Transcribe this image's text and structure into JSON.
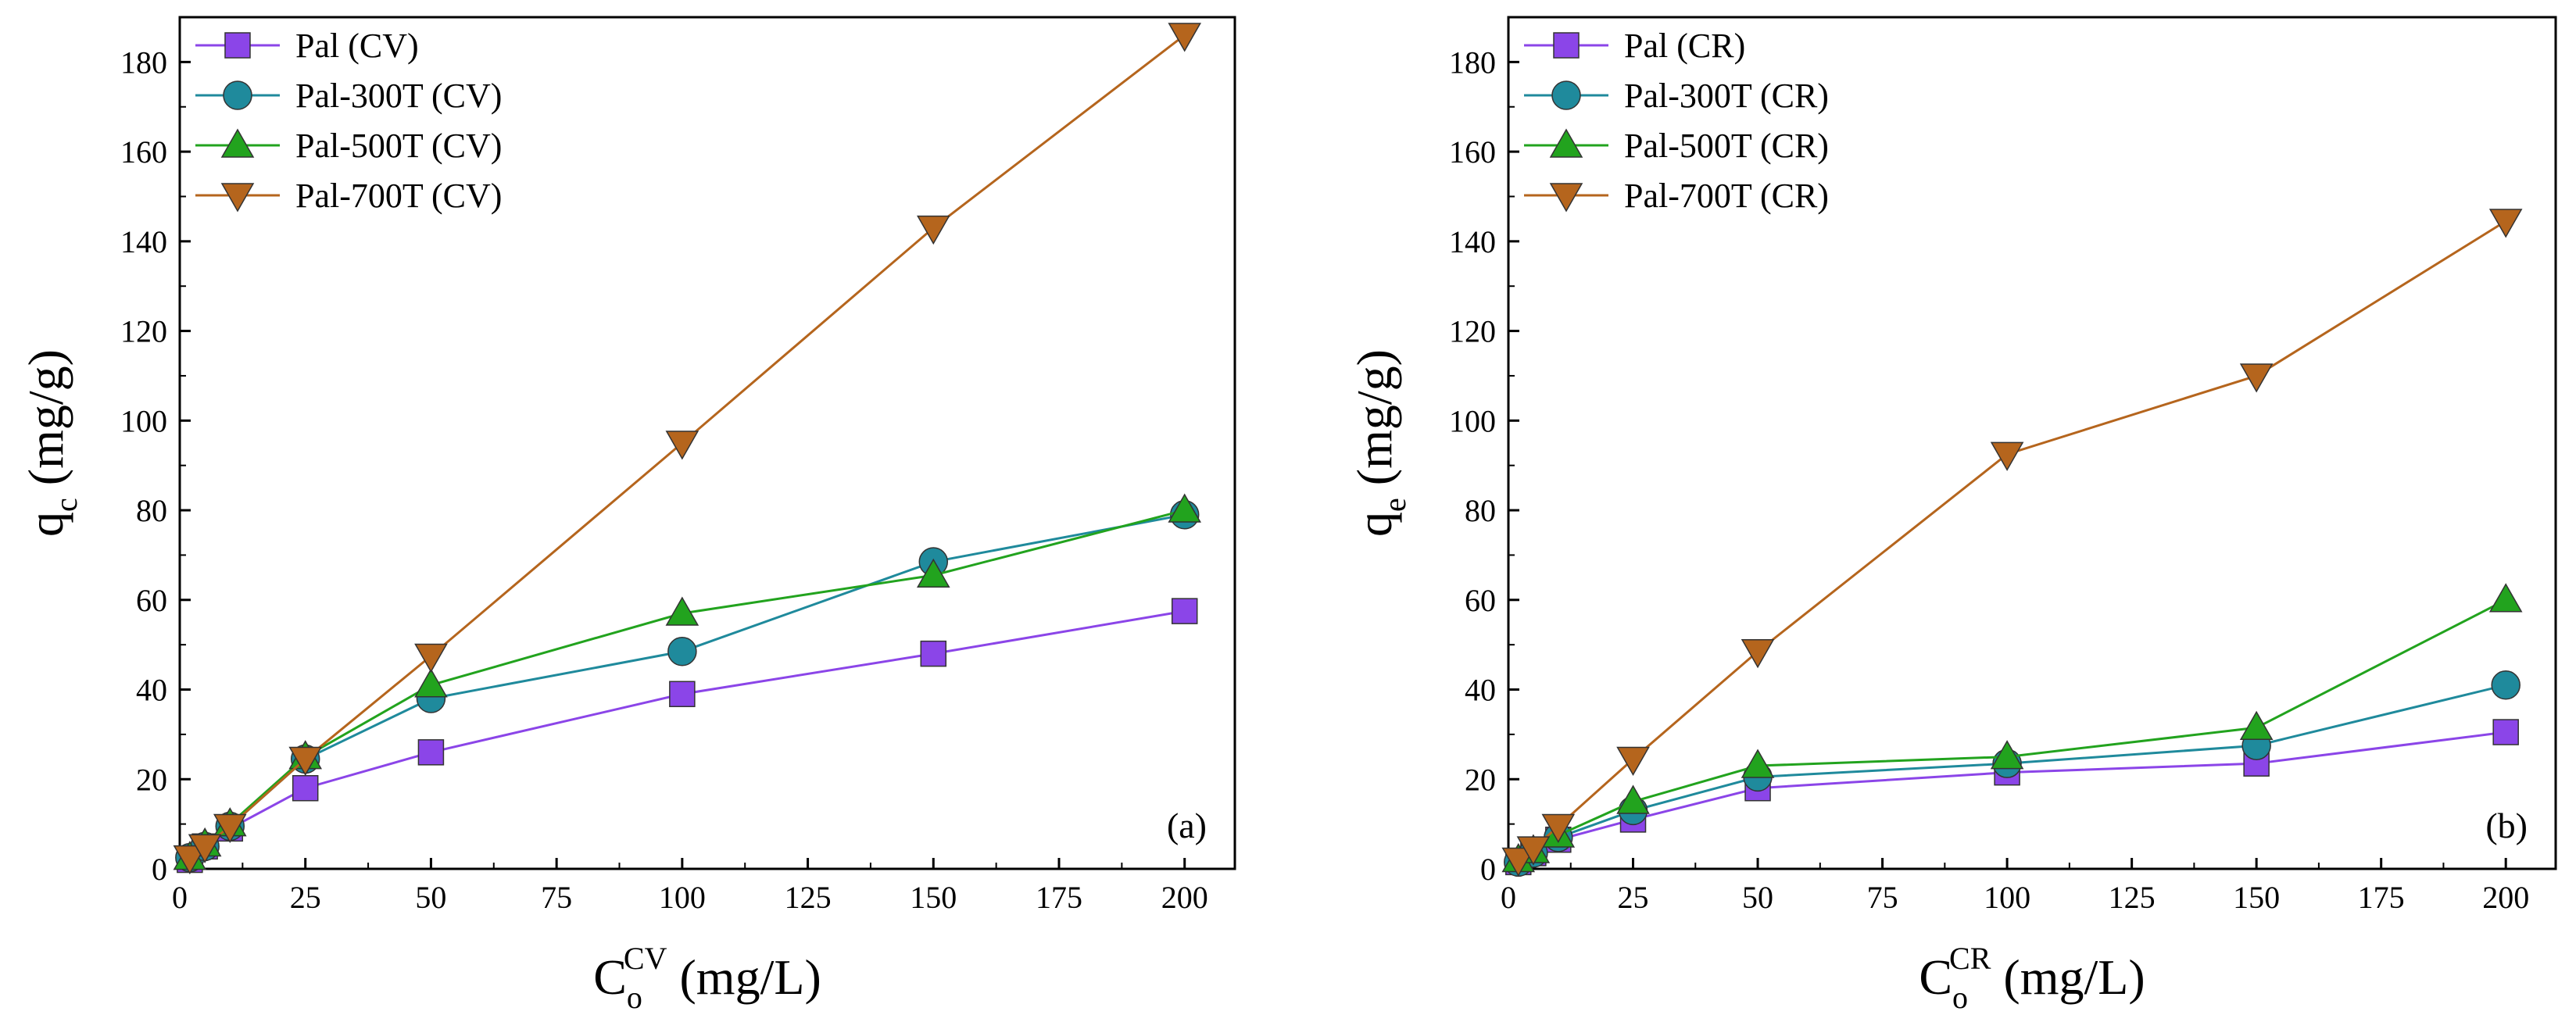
{
  "chart_data": [
    {
      "id": "a",
      "type": "line",
      "panel_label": "(a)",
      "xlabel": {
        "base": "C",
        "sub": "o",
        "sup": "CV",
        "unit": " (mg/L)"
      },
      "ylabel": {
        "base": "q",
        "sub": "c",
        "unit": " (mg/g)"
      },
      "xlim": [
        0,
        210
      ],
      "ylim": [
        0,
        190
      ],
      "xticks": [
        0,
        25,
        50,
        75,
        100,
        125,
        150,
        175,
        200
      ],
      "yticks": [
        0,
        20,
        40,
        60,
        80,
        100,
        120,
        140,
        160,
        180
      ],
      "legend_position": "top-left",
      "x": [
        2,
        5,
        10,
        25,
        50,
        100,
        150,
        200
      ],
      "series": [
        {
          "name": "Pal (CV)",
          "marker": "square",
          "color": "#8B45E8",
          "values": [
            2,
            5,
            9,
            18,
            26,
            39,
            48,
            57.5
          ]
        },
        {
          "name": "Pal-300T (CV)",
          "marker": "circle",
          "color": "#1F8A9C",
          "values": [
            2.5,
            5,
            9.5,
            24.5,
            38,
            48.5,
            68.5,
            79
          ]
        },
        {
          "name": "Pal-500T (CV)",
          "marker": "triangle-up",
          "color": "#22A31E",
          "values": [
            2.5,
            5.5,
            10,
            25,
            41,
            57,
            65.5,
            80
          ]
        },
        {
          "name": "Pal-700T (CV)",
          "marker": "triangle-down",
          "color": "#B5651D",
          "values": [
            2.5,
            5,
            9.5,
            24.5,
            47.5,
            95,
            143,
            186
          ]
        }
      ]
    },
    {
      "id": "b",
      "type": "line",
      "panel_label": "(b)",
      "xlabel": {
        "base": "C",
        "sub": "o",
        "sup": "CR",
        "unit": " (mg/L)"
      },
      "ylabel": {
        "base": "q",
        "sub": "e",
        "unit": " (mg/g)"
      },
      "xlim": [
        0,
        210
      ],
      "ylim": [
        0,
        190
      ],
      "xticks": [
        0,
        25,
        50,
        75,
        100,
        125,
        150,
        175,
        200
      ],
      "yticks": [
        0,
        20,
        40,
        60,
        80,
        100,
        120,
        140,
        160,
        180
      ],
      "legend_position": "top-left",
      "x": [
        2,
        5,
        10,
        25,
        50,
        100,
        150,
        200
      ],
      "series": [
        {
          "name": "Pal (CR)",
          "marker": "square",
          "color": "#8B45E8",
          "values": [
            1.5,
            3.5,
            6.5,
            11,
            18,
            21.5,
            23.5,
            30.5
          ]
        },
        {
          "name": "Pal-300T (CR)",
          "marker": "circle",
          "color": "#1F8A9C",
          "values": [
            1.5,
            3.5,
            7,
            13,
            20.5,
            23.5,
            27.5,
            41
          ]
        },
        {
          "name": "Pal-500T (CR)",
          "marker": "triangle-up",
          "color": "#22A31E",
          "values": [
            2,
            4,
            7.5,
            15,
            23,
            25,
            31.5,
            60
          ]
        },
        {
          "name": "Pal-700T (CR)",
          "marker": "triangle-down",
          "color": "#B5651D",
          "values": [
            2,
            4.5,
            9.5,
            24.5,
            48.5,
            92.5,
            110,
            144.5
          ]
        }
      ]
    }
  ]
}
